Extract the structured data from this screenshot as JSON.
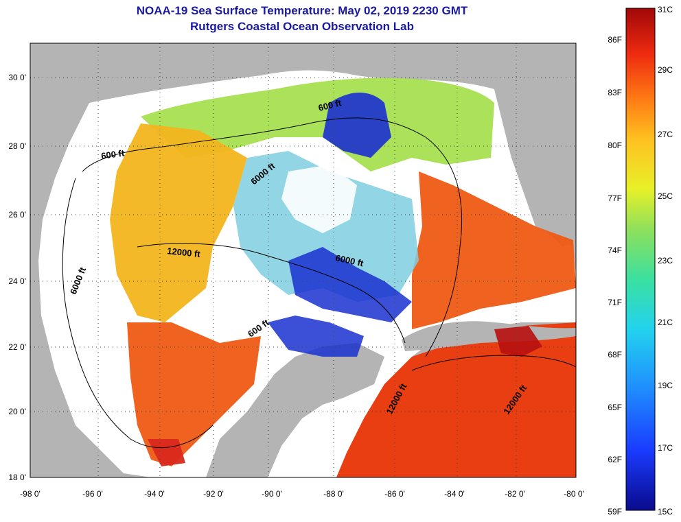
{
  "header": {
    "title": "NOAA-19 Sea Surface Temperature:  May 02, 2019 2230 GMT",
    "subtitle": "Rutgers Coastal Ocean Observation Lab"
  },
  "axes": {
    "lon_labels": [
      "-98 0'",
      "-96 0'",
      "-94 0'",
      "-92 0'",
      "-90 0'",
      "-88 0'",
      "-86 0'",
      "-84 0'",
      "-82 0'",
      "-80 0'"
    ],
    "lat_labels": [
      "30 0'",
      "28 0'",
      "26 0'",
      "24 0'",
      "22 0'",
      "20 0'",
      "18 0'"
    ]
  },
  "contours": [
    {
      "text": "600 ft"
    },
    {
      "text": "600 ft"
    },
    {
      "text": "6000 ft"
    },
    {
      "text": "12000 ft"
    },
    {
      "text": "6000 ft"
    },
    {
      "text": "6000 ft"
    },
    {
      "text": "600 ft"
    },
    {
      "text": "12000 ft"
    },
    {
      "text": "12000 ft"
    }
  ],
  "colorbar": {
    "fahrenheit": [
      "86F",
      "83F",
      "80F",
      "77F",
      "74F",
      "71F",
      "68F",
      "65F",
      "62F",
      "59F"
    ],
    "celsius": [
      "31C",
      "29C",
      "27C",
      "25C",
      "23C",
      "21C",
      "19C",
      "17C",
      "15C"
    ],
    "colors": [
      "#0a0a8c",
      "#1a3cff",
      "#1f8cff",
      "#22d2ee",
      "#3be0a0",
      "#8fe05a",
      "#e8f028",
      "#ffc020",
      "#ff7a14",
      "#ee2a10",
      "#a00808"
    ]
  }
}
